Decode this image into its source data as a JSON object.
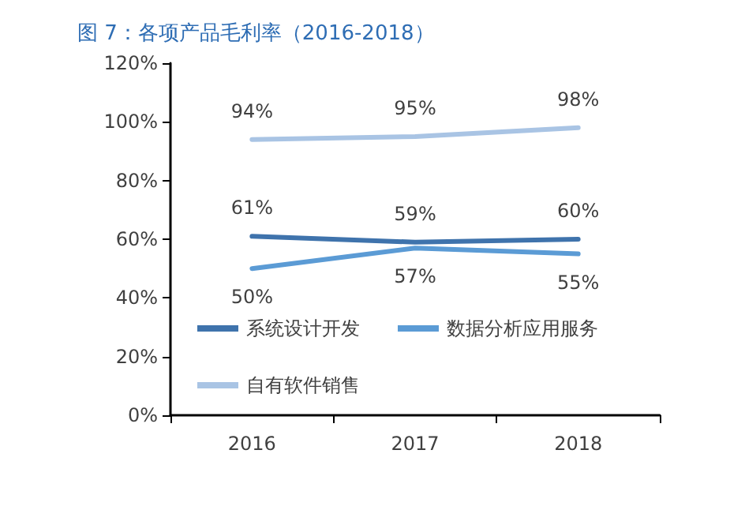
{
  "chart_data": {
    "type": "line",
    "title": "图 7：各项产品毛利率（2016-2018）",
    "categories": [
      "2016",
      "2017",
      "2018"
    ],
    "series": [
      {
        "name": "系统设计开发",
        "color": "#3f73ac",
        "values": [
          61,
          59,
          60
        ],
        "value_labels": [
          "61%",
          "59%",
          "60%"
        ]
      },
      {
        "name": "数据分析应用服务",
        "color": "#5b9bd5",
        "values": [
          50,
          57,
          55
        ],
        "value_labels": [
          "50%",
          "57%",
          "55%"
        ]
      },
      {
        "name": "自有软件销售",
        "color": "#a9c4e4",
        "values": [
          94,
          95,
          98
        ],
        "value_labels": [
          "94%",
          "95%",
          "98%"
        ]
      }
    ],
    "ylim": [
      0,
      120
    ],
    "yticks": [
      {
        "value": 0,
        "label": "0%"
      },
      {
        "value": 20,
        "label": "20%"
      },
      {
        "value": 40,
        "label": "40%"
      },
      {
        "value": 60,
        "label": "60%"
      },
      {
        "value": 80,
        "label": "80%"
      },
      {
        "value": 100,
        "label": "100%"
      },
      {
        "value": 120,
        "label": "120%"
      }
    ],
    "grid": false,
    "legend": "bottom",
    "marker": "none",
    "line_style": "solid"
  }
}
